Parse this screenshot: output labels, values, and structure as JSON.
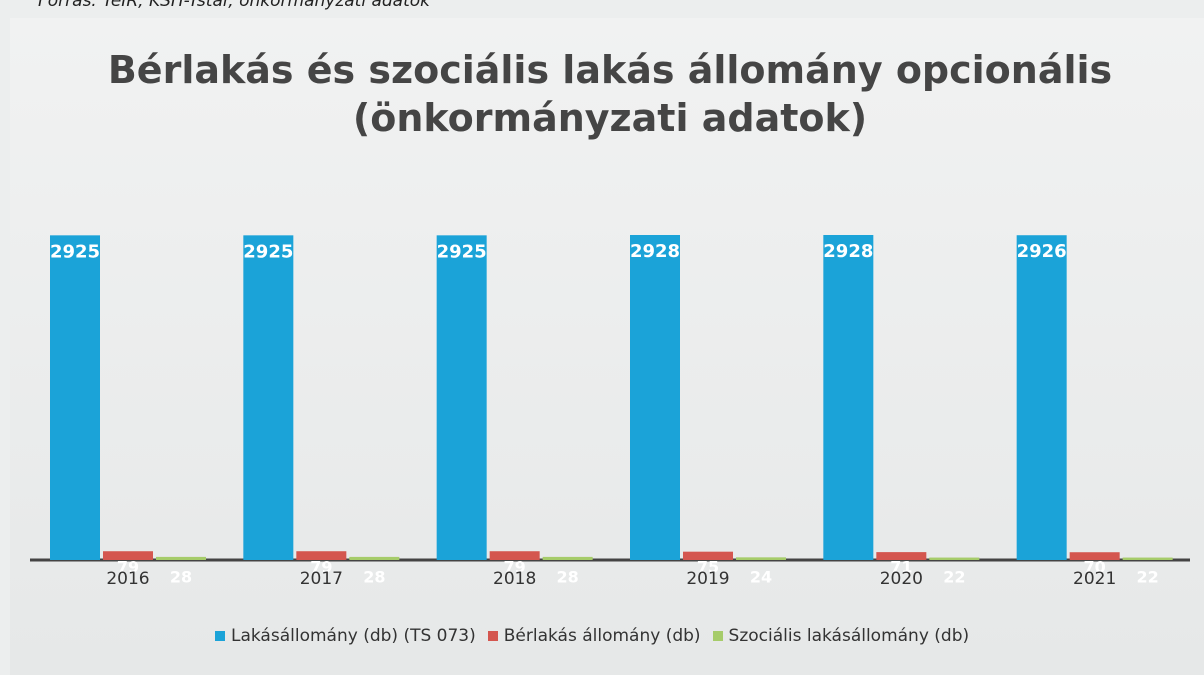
{
  "source": "Forrás: TeIR, KSH-Tstar, önkormányzati adatok",
  "chart_data": {
    "type": "bar",
    "title": "Bérlakás és szociális lakás állomány opcionális (önkormányzati adatok)",
    "categories": [
      "2016",
      "2017",
      "2018",
      "2019",
      "2020",
      "2021"
    ],
    "series": [
      {
        "name": "Lakásállomány (db) (TS 073)",
        "color": "#1ba3d8",
        "values": [
          2925,
          2925,
          2925,
          2928,
          2928,
          2926
        ]
      },
      {
        "name": "Bérlakás állomány (db)",
        "color": "#d4564f",
        "values": [
          79,
          79,
          79,
          75,
          71,
          70
        ]
      },
      {
        "name": "Szociális lakásállomány (db)",
        "color": "#a6cc6a",
        "values": [
          28,
          28,
          28,
          24,
          22,
          22
        ]
      }
    ],
    "legend": "bottom"
  }
}
